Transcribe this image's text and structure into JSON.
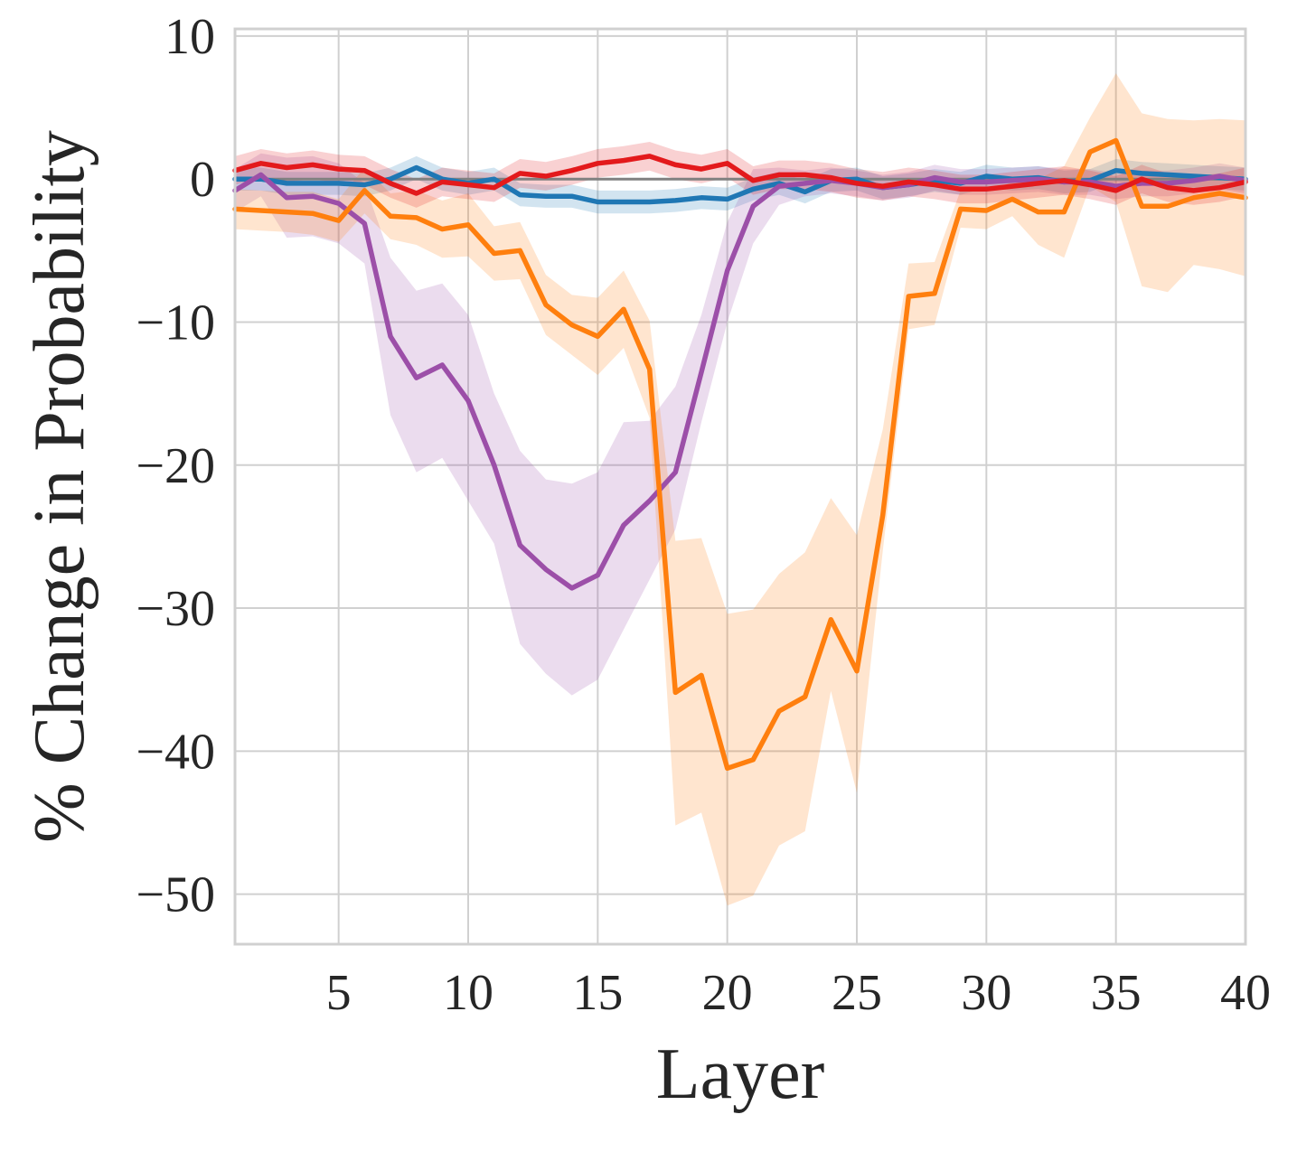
{
  "chart_data": {
    "type": "line",
    "xlabel": "Layer",
    "ylabel": "% Change in Probability",
    "xlim": [
      1,
      40
    ],
    "ylim": [
      -53.5,
      10.5
    ],
    "xticks": [
      5,
      10,
      15,
      20,
      25,
      30,
      35,
      40
    ],
    "yticks": [
      10,
      0,
      -10,
      -20,
      -30,
      -40,
      -50
    ],
    "ytick_labels": [
      "10",
      "0",
      "−10",
      "−20",
      "−30",
      "−40",
      "−50"
    ],
    "grid": true,
    "reference_line": 0,
    "x": [
      1,
      2,
      3,
      4,
      5,
      6,
      7,
      8,
      9,
      10,
      11,
      12,
      13,
      14,
      15,
      16,
      17,
      18,
      19,
      20,
      21,
      22,
      23,
      24,
      25,
      26,
      27,
      28,
      29,
      30,
      31,
      32,
      33,
      34,
      35,
      36,
      37,
      38,
      39,
      40
    ],
    "series": [
      {
        "color": "#1f77b4",
        "values": [
          0,
          0,
          -0.3,
          -0.3,
          -0.3,
          -0.4,
          0,
          0.8,
          0,
          -0.3,
          0,
          -1.1,
          -1.2,
          -1.2,
          -1.6,
          -1.6,
          -1.6,
          -1.5,
          -1.3,
          -1.4,
          -0.7,
          -0.3,
          -0.9,
          -0.1,
          0,
          -0.6,
          -0.4,
          -0.1,
          -0.3,
          0.2,
          0,
          0.1,
          -0.2,
          -0.1,
          0.6,
          0.4,
          0.3,
          0.2,
          0.1,
          0
        ],
        "lower": [
          -0.8,
          -0.8,
          -1.1,
          -1.1,
          -1.1,
          -1.2,
          -0.8,
          0,
          -0.8,
          -1.1,
          -0.8,
          -1.9,
          -2,
          -2,
          -2.4,
          -2.4,
          -2.4,
          -2.3,
          -2.1,
          -2.2,
          -1.5,
          -1.1,
          -1.7,
          -0.9,
          -0.8,
          -1.4,
          -1.2,
          -0.9,
          -1.1,
          -0.6,
          -0.8,
          -0.7,
          -1,
          -0.9,
          -0.2,
          -0.4,
          -0.5,
          -0.6,
          -0.7,
          -0.8
        ],
        "upper": [
          0.8,
          0.8,
          0.5,
          0.5,
          0.5,
          0.4,
          0.8,
          1.6,
          0.8,
          0.5,
          0.8,
          -0.3,
          -0.4,
          -0.4,
          -0.8,
          -0.8,
          -0.8,
          -0.7,
          -0.5,
          -0.6,
          0.1,
          0.5,
          -0.1,
          0.7,
          0.8,
          0.2,
          0.4,
          0.7,
          0.5,
          1,
          0.8,
          0.9,
          0.6,
          0.7,
          1.4,
          1.2,
          1.1,
          1,
          0.9,
          0.8
        ]
      },
      {
        "color": "#9c4fa8",
        "values": [
          -0.8,
          0.3,
          -1.3,
          -1.2,
          -1.7,
          -3.1,
          -11,
          -13.9,
          -13,
          -15.5,
          -20,
          -25.6,
          -27.3,
          -28.6,
          -27.7,
          -24.2,
          -22.5,
          -20.5,
          -13.5,
          -6.4,
          -1.9,
          -0.5,
          -0.3,
          -0.1,
          -0.3,
          -0.6,
          -0.4,
          0.1,
          -0.2,
          -0.2,
          -0.1,
          0,
          -0.2,
          -0.2,
          -0.5,
          -0.3,
          -0.3,
          -0.1,
          0.2,
          -0.1
        ],
        "lower": [
          -2.3,
          -1.2,
          -4.1,
          -4,
          -4.5,
          -5.9,
          -16.5,
          -20.5,
          -19.5,
          -22.5,
          -25.5,
          -32.5,
          -34.6,
          -36.1,
          -35,
          -31.5,
          -28,
          -24.5,
          -17,
          -10,
          -4.5,
          -1.8,
          -1.2,
          -1,
          -1.2,
          -1.5,
          -1.3,
          -0.8,
          -1.1,
          -1.1,
          -1,
          -0.9,
          -1.1,
          -1.1,
          -1.4,
          -1.2,
          -1.2,
          -1,
          -0.7,
          -1
        ],
        "upper": [
          0.7,
          1.8,
          1.5,
          1.6,
          1.1,
          -0.3,
          -5.5,
          -7.8,
          -7.3,
          -9.5,
          -15,
          -19,
          -21,
          -21.3,
          -20.5,
          -17,
          -16.9,
          -14.5,
          -9.5,
          -3,
          0.7,
          0.8,
          0.6,
          0.8,
          0.6,
          0.3,
          0.5,
          1,
          0.7,
          0.7,
          0.8,
          0.9,
          0.7,
          0.7,
          0.4,
          0.6,
          0.6,
          0.8,
          1.1,
          0.8
        ]
      },
      {
        "color": "#ff7f0e",
        "values": [
          -2.1,
          -2.2,
          -2.3,
          -2.4,
          -2.9,
          -0.8,
          -2.6,
          -2.7,
          -3.5,
          -3.2,
          -5.2,
          -5,
          -8.8,
          -10.2,
          -11,
          -9.1,
          -13.3,
          -35.9,
          -34.7,
          -41.2,
          -40.6,
          -37.2,
          -36.2,
          -30.8,
          -34.4,
          -23.5,
          -8.2,
          -8,
          -2.1,
          -2.2,
          -1.4,
          -2.3,
          -2.3,
          1.9,
          2.7,
          -1.9,
          -1.9,
          -1.3,
          -1,
          -1.3
        ],
        "lower": [
          -3.5,
          -3.6,
          -3.7,
          -3.9,
          -4.4,
          -2.4,
          -4.2,
          -4.6,
          -5.5,
          -5.4,
          -7.1,
          -7,
          -10.9,
          -12.3,
          -13.7,
          -11.8,
          -16.7,
          -45.2,
          -44.3,
          -50.8,
          -50.1,
          -46.6,
          -45.6,
          -35.8,
          -42.9,
          -26,
          -10.5,
          -10.2,
          -3.4,
          -3.5,
          -2.6,
          -4.6,
          -5.5,
          -0.5,
          -1.6,
          -7.5,
          -7.9,
          -6,
          -6.3,
          -6.8
        ],
        "upper": [
          -0.7,
          -0.8,
          -0.9,
          -0.9,
          -1.4,
          0.8,
          -1,
          -0.8,
          -1.5,
          -1,
          -3.3,
          -3,
          -6.7,
          -8.1,
          -8.3,
          -6.4,
          -9.9,
          -25.3,
          -25.1,
          -30.4,
          -30.1,
          -27.6,
          -26.1,
          -22.3,
          -24.9,
          -17.5,
          -5.9,
          -5.8,
          -0.8,
          -0.9,
          -0.2,
          0,
          0.9,
          4.3,
          7.4,
          4.6,
          4.2,
          4.1,
          4.2,
          4.1
        ]
      },
      {
        "color": "#e31a1c",
        "values": [
          0.6,
          1.1,
          0.8,
          1,
          0.7,
          0.6,
          -0.3,
          -1,
          -0.2,
          -0.4,
          -0.6,
          0.4,
          0.2,
          0.6,
          1.1,
          1.3,
          1.6,
          1,
          0.7,
          1.1,
          -0.1,
          0.3,
          0.3,
          0.1,
          -0.3,
          -0.5,
          -0.2,
          -0.4,
          -0.7,
          -0.7,
          -0.5,
          -0.3,
          -0.1,
          -0.4,
          -0.8,
          0,
          -0.6,
          -0.8,
          -0.6,
          -0.2
        ],
        "lower": [
          -0.4,
          0.1,
          -0.2,
          0,
          -0.3,
          -0.4,
          -1.3,
          -2,
          -1.2,
          -1.4,
          -1.6,
          -0.6,
          -0.8,
          -0.4,
          0.1,
          0.3,
          0.6,
          0,
          -0.3,
          0.1,
          -1.1,
          -0.7,
          -0.7,
          -0.9,
          -1.3,
          -1.5,
          -1.2,
          -1.4,
          -1.7,
          -1.7,
          -1.5,
          -1.3,
          -1.1,
          -1.4,
          -1.8,
          -1,
          -1.6,
          -1.8,
          -1.6,
          -1.2
        ],
        "upper": [
          1.6,
          2.1,
          1.8,
          2,
          1.7,
          1.6,
          0.7,
          0,
          0.8,
          0.6,
          0.4,
          1.4,
          1.2,
          1.6,
          2.1,
          2.3,
          2.6,
          2,
          1.7,
          2.1,
          0.9,
          1.3,
          1.3,
          1.1,
          0.7,
          0.5,
          0.8,
          0.6,
          0.3,
          0.3,
          0.5,
          0.7,
          0.9,
          0.6,
          0.2,
          1,
          0.4,
          0.2,
          0.4,
          0.8
        ]
      }
    ]
  }
}
